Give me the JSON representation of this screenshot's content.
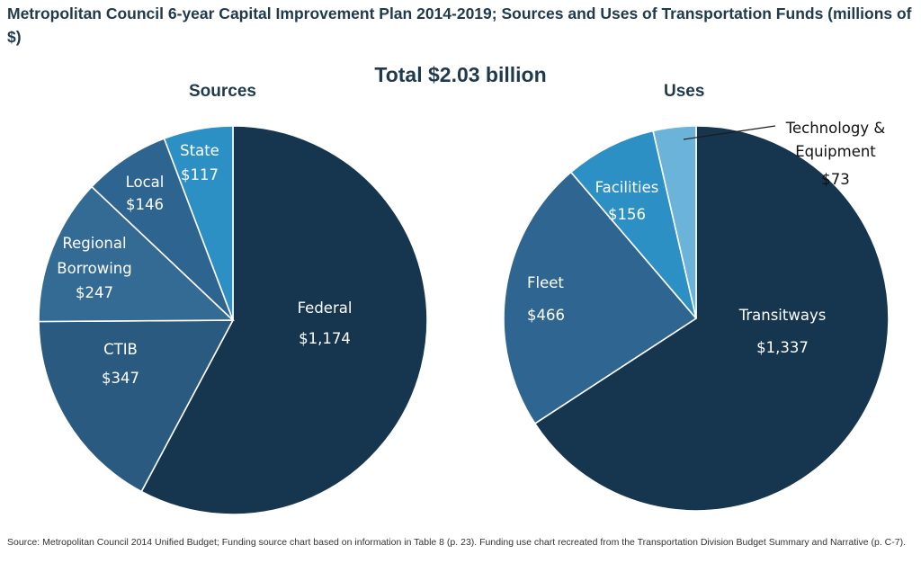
{
  "title": "Metropolitan Council 6-year Capital Improvement Plan 2014-2019; Sources and Uses of Transportation Funds (millions of $)",
  "total_label": "Total $2.03 billion",
  "footnote": "Source: Metropolitan Council 2014 Unified Budget; Funding source chart based on information in Table 8 (p. 23).  Funding use chart recreated from the Transportation Division Budget Summary and Narrative (p. C-7).",
  "colors": {
    "darkest": "#16364f",
    "dark": "#2b5a80",
    "mid": "#346b94",
    "steel": "#3a75a2",
    "bright": "#2d90c4",
    "light": "#6cb3d9"
  },
  "chart_data": [
    {
      "type": "pie",
      "title": "Sources",
      "categories": [
        "Federal",
        "CTIB",
        "Regional Borrowing",
        "Local",
        "State"
      ],
      "values": [
        1174,
        347,
        247,
        146,
        117
      ],
      "value_labels": [
        "$1,174",
        "$347",
        "$247",
        "$146",
        "$117"
      ],
      "colors": [
        "#16364f",
        "#2b5a80",
        "#346b94",
        "#2e6490",
        "#2d90c4"
      ],
      "unit": "millions of $"
    },
    {
      "type": "pie",
      "title": "Uses",
      "categories": [
        "Transitways",
        "Fleet",
        "Facilities",
        "Technology & Equipment"
      ],
      "values": [
        1337,
        466,
        156,
        73
      ],
      "value_labels": [
        "$1,337",
        "$466",
        "$156",
        "$73"
      ],
      "colors": [
        "#16364f",
        "#2f6691",
        "#2d90c4",
        "#6cb3d9"
      ],
      "unit": "millions of $"
    }
  ]
}
